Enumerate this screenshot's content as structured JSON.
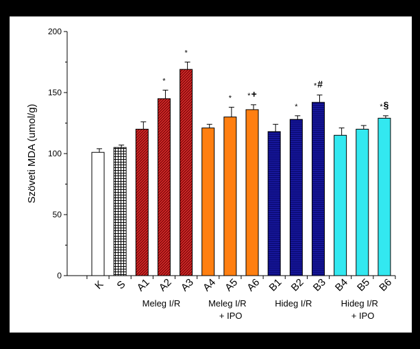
{
  "chart_data": {
    "type": "bar",
    "ylabel": "Szöveti MDA (umol/g)",
    "ylim": [
      0,
      200
    ],
    "yticks": [
      "0",
      "50",
      "100",
      "150",
      "200"
    ],
    "categories": [
      "K",
      "S",
      "A1",
      "A2",
      "A3",
      "A4",
      "A5",
      "A6",
      "B1",
      "B2",
      "B3",
      "B4",
      "B5",
      "B6"
    ],
    "values": [
      101,
      105,
      120,
      145,
      169,
      121,
      130,
      136,
      118,
      128,
      142,
      115,
      120,
      129
    ],
    "errors": [
      3,
      2,
      6,
      7,
      6,
      3,
      8,
      4,
      6,
      3,
      6,
      6,
      3,
      2
    ],
    "significance": [
      "",
      "",
      "",
      "*",
      "*",
      "",
      "*",
      "*+",
      "",
      "*",
      "*#",
      "",
      "",
      "*§"
    ],
    "groups": [
      {
        "lines": [
          "Meleg I/R"
        ],
        "categories": [
          "A1",
          "A2",
          "A3"
        ]
      },
      {
        "lines": [
          "Meleg I/R",
          "+ IPO"
        ],
        "categories": [
          "A4",
          "A5",
          "A6"
        ]
      },
      {
        "lines": [
          "Hideg I/R"
        ],
        "categories": [
          "B1",
          "B2",
          "B3"
        ]
      },
      {
        "lines": [
          "Hideg I/R",
          "+ IPO"
        ],
        "categories": [
          "B4",
          "B5",
          "B6"
        ]
      }
    ],
    "bar_colors": [
      "#ffffff",
      "#ffffff",
      "#d42a2a",
      "#d42a2a",
      "#d42a2a",
      "#ff7f11",
      "#ff7f11",
      "#ff7f11",
      "#1a1aa8",
      "#1a1aa8",
      "#1a1aa8",
      "#33e8f0",
      "#33e8f0",
      "#33e8f0"
    ],
    "bar_patterns": [
      "none",
      "grid",
      "diagonal",
      "diagonal",
      "diagonal",
      "none",
      "none",
      "none",
      "horizontal",
      "horizontal",
      "horizontal",
      "none",
      "none",
      "none"
    ]
  }
}
